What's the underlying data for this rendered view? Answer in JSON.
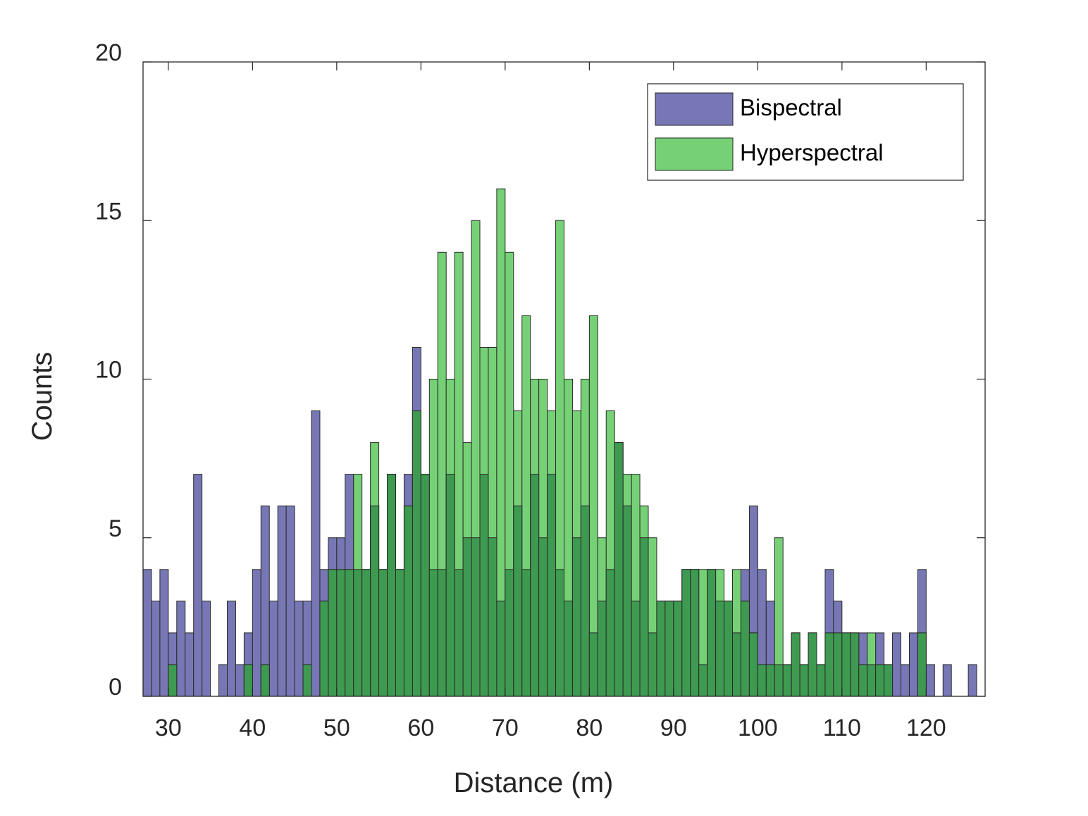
{
  "chart_data": {
    "type": "histogram",
    "xlabel": "Distance (m)",
    "ylabel": "Counts",
    "xlim": [
      27,
      127
    ],
    "ylim": [
      0,
      20
    ],
    "xticks": [
      30,
      40,
      50,
      60,
      70,
      80,
      90,
      100,
      110,
      120
    ],
    "yticks": [
      0,
      5,
      10,
      15,
      20
    ],
    "bin_start": 27,
    "bin_width": 1,
    "legend_position": "top-right",
    "series": [
      {
        "name": "Bispectral",
        "color": "#7777B5",
        "values": [
          4,
          3,
          4,
          2,
          3,
          2,
          7,
          3,
          0,
          1,
          3,
          1,
          2,
          4,
          6,
          3,
          6,
          6,
          3,
          3,
          9,
          4,
          5,
          5,
          7,
          4,
          4,
          6,
          4,
          7,
          4,
          7,
          11,
          7,
          4,
          4,
          7,
          4,
          5,
          5,
          7,
          5,
          3,
          4,
          6,
          4,
          7,
          5,
          7,
          4,
          3,
          5,
          6,
          2,
          3,
          4,
          8,
          6,
          3,
          5,
          2,
          3,
          3,
          3,
          4,
          4,
          1,
          4,
          3,
          3,
          2,
          4,
          6,
          4,
          3,
          1,
          1,
          2,
          1,
          2,
          1,
          4,
          3,
          2,
          2,
          2,
          1,
          2,
          1,
          2,
          1,
          2,
          4,
          1,
          0,
          1,
          0,
          0,
          1,
          0
        ]
      },
      {
        "name": "Hyperspectral",
        "color": "#76D176",
        "values": [
          0,
          0,
          0,
          1,
          0,
          0,
          0,
          0,
          0,
          0,
          0,
          0,
          1,
          0,
          1,
          0,
          0,
          0,
          0,
          1,
          0,
          3,
          4,
          4,
          4,
          7,
          4,
          8,
          4,
          7,
          4,
          6,
          9,
          7,
          10,
          14,
          10,
          14,
          8,
          15,
          11,
          11,
          16,
          14,
          9,
          12,
          10,
          10,
          9,
          15,
          10,
          9,
          10,
          12,
          5,
          9,
          8,
          7,
          7,
          6,
          5,
          3,
          3,
          3,
          4,
          4,
          4,
          4,
          4,
          3,
          4,
          3,
          2,
          1,
          1,
          5,
          1,
          2,
          1,
          2,
          1,
          2,
          2,
          2,
          2,
          1,
          2,
          1,
          1,
          0,
          0,
          0,
          2,
          0,
          0,
          0,
          0,
          0,
          0,
          0
        ]
      }
    ]
  }
}
